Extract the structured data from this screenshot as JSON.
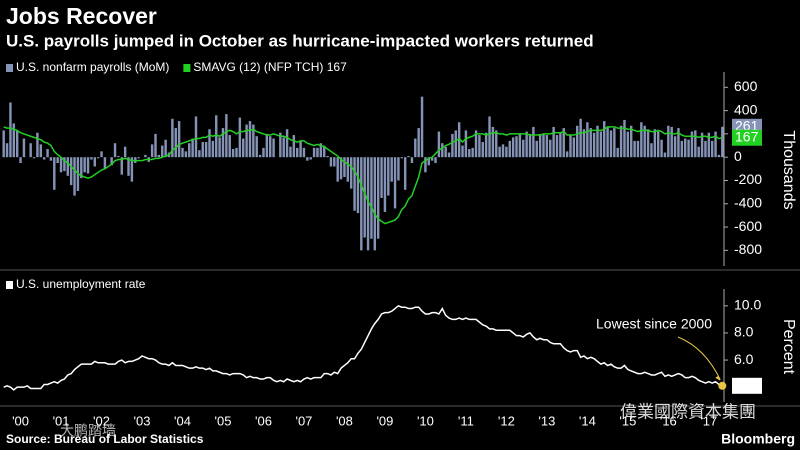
{
  "title": "Jobs Recover",
  "subtitle": "U.S. payrolls jumped in October as hurricane-impacted workers returned",
  "source": "Source: Bureau of Labor Statistics",
  "brand": "Bloomberg",
  "watermarks": [
    "大鹏踏墙",
    "偉業國際資本集團"
  ],
  "chart_data": [
    {
      "type": "bar",
      "ylabel": "Thousands",
      "ylim": [
        -900,
        680
      ],
      "yticks": [
        600,
        400,
        200,
        0,
        -200,
        -400,
        -600,
        -800
      ],
      "series": [
        {
          "name": "U.S. nonfarm payrolls (MoM)",
          "color": "#8593b6",
          "type": "bar",
          "values": [
            230,
            120,
            470,
            290,
            230,
            -50,
            160,
            0,
            120,
            -10,
            210,
            110,
            -20,
            70,
            -30,
            -280,
            -50,
            -130,
            -120,
            -160,
            -240,
            -330,
            -290,
            -180,
            -130,
            -140,
            -20,
            -80,
            -10,
            50,
            -100,
            0,
            -70,
            120,
            10,
            -150,
            90,
            -160,
            -210,
            -50,
            -10,
            0,
            20,
            -40,
            110,
            200,
            20,
            100,
            150,
            40,
            330,
            250,
            310,
            80,
            50,
            120,
            160,
            350,
            60,
            130,
            130,
            240,
            140,
            360,
            170,
            250,
            370,
            190,
            70,
            80,
            340,
            160,
            280,
            310,
            280,
            180,
            20,
            80,
            200,
            180,
            160,
            0,
            210,
            170,
            240,
            90,
            190,
            80,
            140,
            80,
            -30,
            -20,
            80,
            80,
            120,
            100,
            10,
            -80,
            -80,
            -210,
            -190,
            -170,
            -210,
            -270,
            -460,
            -480,
            -800,
            -690,
            -800,
            -700,
            -800,
            -700,
            -350,
            -470,
            -330,
            -210,
            -440,
            -200,
            -10,
            -280,
            10,
            -50,
            160,
            250,
            520,
            -130,
            -70,
            -30,
            -50,
            220,
            120,
            90,
            40,
            200,
            230,
            300,
            100,
            230,
            70,
            80,
            230,
            190,
            130,
            210,
            350,
            260,
            230,
            90,
            110,
            90,
            140,
            170,
            180,
            200,
            150,
            220,
            200,
            260,
            140,
            200,
            200,
            190,
            150,
            260,
            190,
            210,
            250,
            50,
            190,
            170,
            270,
            330,
            240,
            300,
            250,
            210,
            270,
            220,
            310,
            260,
            230,
            250,
            80,
            270,
            320,
            220,
            270,
            140,
            140,
            300,
            270,
            240,
            120,
            240,
            220,
            150,
            40,
            270,
            260,
            180,
            250,
            140,
            160,
            150,
            220,
            230,
            90,
            210,
            140,
            210,
            140,
            220,
            20,
            261
          ]
        },
        {
          "name": "SMAVG (12) (NFP TCH) 167",
          "color": "#22d022",
          "type": "line",
          "values": [
            260,
            250,
            250,
            240,
            230,
            210,
            200,
            190,
            180,
            170,
            160,
            150,
            130,
            120,
            100,
            50,
            20,
            0,
            -30,
            -50,
            -80,
            -110,
            -140,
            -160,
            -170,
            -180,
            -170,
            -150,
            -130,
            -110,
            -100,
            -80,
            -60,
            -30,
            -20,
            -20,
            -10,
            -20,
            -30,
            -30,
            -30,
            -30,
            -20,
            -20,
            -20,
            -10,
            -10,
            0,
            10,
            20,
            60,
            80,
            110,
            120,
            130,
            140,
            150,
            160,
            160,
            170,
            170,
            190,
            180,
            190,
            180,
            200,
            220,
            230,
            220,
            200,
            220,
            220,
            230,
            230,
            240,
            220,
            210,
            200,
            190,
            190,
            200,
            190,
            180,
            180,
            170,
            150,
            140,
            130,
            140,
            140,
            120,
            110,
            100,
            110,
            100,
            90,
            70,
            50,
            30,
            10,
            -20,
            -40,
            -60,
            -80,
            -120,
            -170,
            -240,
            -310,
            -380,
            -430,
            -490,
            -530,
            -550,
            -570,
            -560,
            -550,
            -540,
            -510,
            -450,
            -420,
            -360,
            -330,
            -250,
            -170,
            -50,
            -30,
            -10,
            0,
            30,
            60,
            80,
            100,
            110,
            130,
            140,
            160,
            130,
            160,
            170,
            180,
            200,
            200,
            200,
            190,
            200,
            210,
            210,
            200,
            200,
            190,
            200,
            200,
            200,
            200,
            200,
            200,
            190,
            190,
            190,
            190,
            200,
            200,
            200,
            210,
            210,
            210,
            220,
            190,
            190,
            190,
            200,
            210,
            210,
            220,
            230,
            230,
            230,
            230,
            240,
            260,
            260,
            260,
            250,
            250,
            250,
            240,
            240,
            230,
            220,
            230,
            230,
            230,
            220,
            220,
            230,
            220,
            200,
            210,
            200,
            200,
            210,
            190,
            180,
            180,
            180,
            180,
            170,
            180,
            180,
            170,
            170,
            180,
            160,
            167
          ]
        }
      ]
    },
    {
      "type": "line",
      "ylabel": "Percent",
      "ylim": [
        3.2,
        10.8
      ],
      "yticks": [
        {
          "value": 10,
          "label": "10.0"
        },
        {
          "value": 8,
          "label": "8.0"
        },
        {
          "value": 6,
          "label": "6.0"
        }
      ],
      "annotation": "Lowest since 2000",
      "annotation_color": "#e8c547",
      "categories": [
        null,
        null,
        null,
        null,
        null,
        "'00",
        null,
        null,
        null,
        null,
        null,
        null,
        null,
        null,
        null,
        null,
        null,
        "'01",
        null,
        null,
        null,
        null,
        null,
        null,
        null,
        null,
        null,
        null,
        null,
        "'02",
        null,
        null,
        null,
        null,
        null,
        null,
        null,
        null,
        null,
        null,
        null,
        "'03",
        null,
        null,
        null,
        null,
        null,
        null,
        null,
        null,
        null,
        null,
        null,
        "'04",
        null,
        null,
        null,
        null,
        null,
        null,
        null,
        null,
        null,
        null,
        null,
        "'05",
        null,
        null,
        null,
        null,
        null,
        null,
        null,
        null,
        null,
        null,
        null,
        "'06",
        null,
        null,
        null,
        null,
        null,
        null,
        null,
        null,
        null,
        null,
        null,
        "'07",
        null,
        null,
        null,
        null,
        null,
        null,
        null,
        null,
        null,
        null,
        null,
        "'08",
        null,
        null,
        null,
        null,
        null,
        null,
        null,
        null,
        null,
        null,
        null,
        "'09",
        null,
        null,
        null,
        null,
        null,
        null,
        null,
        null,
        null,
        null,
        null,
        "'10",
        null,
        null,
        null,
        null,
        null,
        null,
        null,
        null,
        null,
        null,
        null,
        "'11",
        null,
        null,
        null,
        null,
        null,
        null,
        null,
        null,
        null,
        null,
        null,
        "'12",
        null,
        null,
        null,
        null,
        null,
        null,
        null,
        null,
        null,
        null,
        null,
        "'13",
        null,
        null,
        null,
        null,
        null,
        null,
        null,
        null,
        null,
        null,
        null,
        "'14",
        null,
        null,
        null,
        null,
        null,
        null,
        null,
        null,
        null,
        null,
        null,
        "'15",
        null,
        null,
        null,
        null,
        null,
        null,
        null,
        null,
        null,
        null,
        null,
        "'16",
        null,
        null,
        null,
        null,
        null,
        null,
        null,
        null,
        null,
        null,
        null,
        "'17",
        null,
        null,
        null,
        null
      ],
      "series": [
        {
          "name": "U.S. unemployment rate",
          "color": "#ffffff",
          "type": "line",
          "values": [
            4.0,
            4.1,
            4.0,
            3.8,
            4.0,
            4.0,
            4.0,
            4.1,
            3.9,
            3.9,
            3.9,
            3.9,
            4.2,
            4.2,
            4.3,
            4.4,
            4.3,
            4.5,
            4.6,
            4.9,
            5.0,
            5.3,
            5.5,
            5.7,
            5.7,
            5.7,
            5.7,
            5.9,
            5.8,
            5.8,
            5.8,
            5.7,
            5.7,
            5.7,
            5.9,
            6.0,
            5.8,
            5.9,
            5.9,
            6.0,
            6.1,
            6.3,
            6.2,
            6.1,
            6.1,
            6.0,
            5.8,
            5.7,
            5.7,
            5.6,
            5.8,
            5.6,
            5.6,
            5.6,
            5.5,
            5.4,
            5.4,
            5.5,
            5.4,
            5.4,
            5.3,
            5.4,
            5.2,
            5.2,
            5.1,
            5.0,
            5.0,
            4.9,
            5.0,
            5.0,
            5.0,
            4.9,
            4.7,
            4.8,
            4.7,
            4.7,
            4.6,
            4.6,
            4.7,
            4.7,
            4.5,
            4.4,
            4.5,
            4.4,
            4.6,
            4.5,
            4.4,
            4.5,
            4.4,
            4.6,
            4.7,
            4.6,
            4.7,
            4.7,
            4.7,
            5.0,
            5.0,
            4.9,
            5.1,
            5.0,
            5.4,
            5.6,
            5.8,
            6.1,
            6.1,
            6.5,
            6.8,
            7.3,
            7.8,
            8.3,
            8.7,
            9.0,
            9.4,
            9.5,
            9.5,
            9.6,
            9.8,
            10.0,
            9.9,
            9.9,
            9.8,
            9.8,
            9.9,
            9.9,
            9.6,
            9.4,
            9.4,
            9.5,
            9.5,
            9.4,
            9.8,
            9.3,
            9.1,
            9.0,
            9.0,
            9.1,
            9.0,
            9.1,
            9.0,
            9.0,
            9.0,
            8.8,
            8.6,
            8.5,
            8.3,
            8.3,
            8.2,
            8.2,
            8.2,
            8.2,
            8.2,
            8.0,
            7.8,
            7.8,
            7.7,
            7.9,
            8.0,
            7.7,
            7.5,
            7.6,
            7.5,
            7.5,
            7.3,
            7.2,
            7.2,
            7.2,
            6.9,
            6.7,
            6.6,
            6.7,
            6.7,
            6.2,
            6.3,
            6.1,
            6.2,
            6.1,
            5.9,
            5.7,
            5.8,
            5.6,
            5.7,
            5.5,
            5.4,
            5.4,
            5.6,
            5.3,
            5.2,
            5.1,
            5.0,
            5.0,
            5.1,
            5.0,
            4.9,
            4.9,
            5.0,
            5.1,
            4.8,
            4.9,
            4.8,
            4.9,
            5.0,
            4.9,
            4.7,
            4.7,
            4.8,
            4.7,
            4.5,
            4.4,
            4.3,
            4.4,
            4.3,
            4.4,
            4.2,
            4.1
          ]
        }
      ]
    }
  ]
}
